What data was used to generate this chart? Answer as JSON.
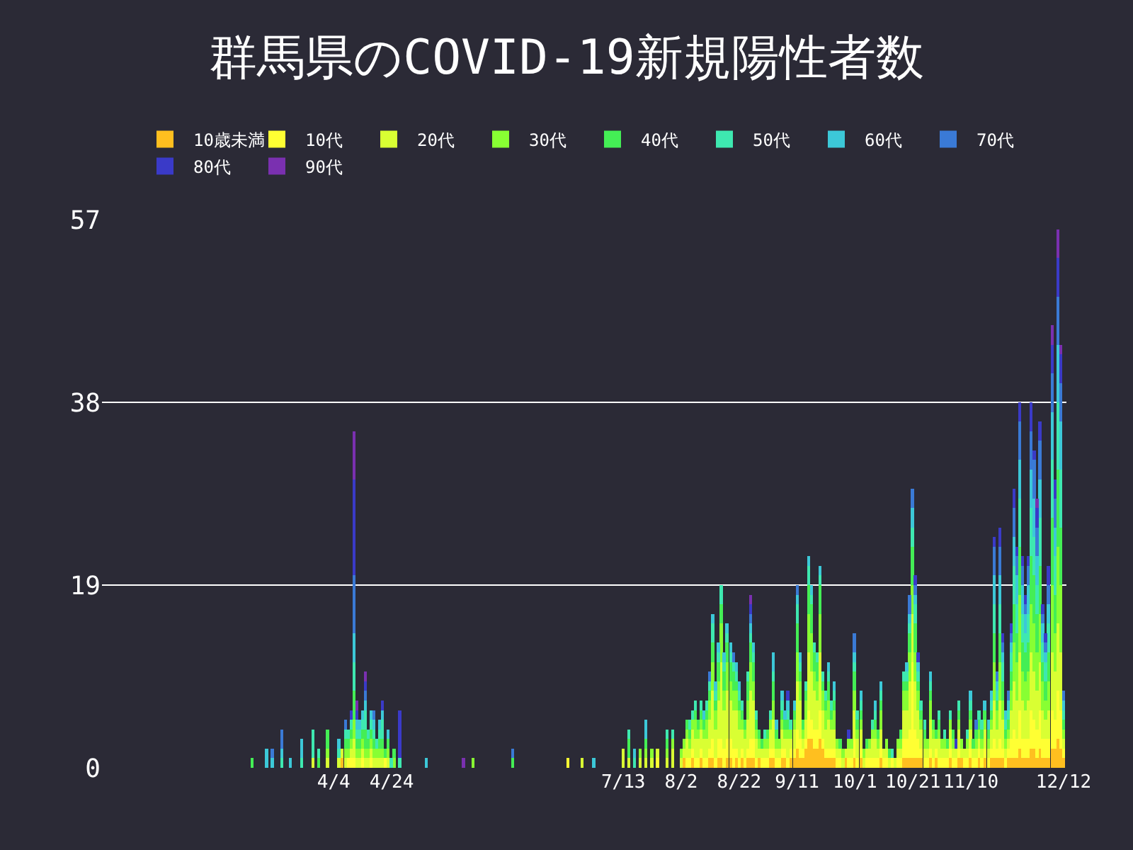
{
  "chart_data": {
    "type": "bar",
    "stacked": true,
    "title": "群馬県のCOVID-19新規陽性者数",
    "x": [
      "--03-07",
      "--03-12",
      "--03-14",
      "--03-17",
      "--03-20",
      "--03-24",
      "--03-28",
      "--03-30",
      "--04-02",
      "--04-06",
      "--04-07",
      "--04-08",
      "--04-09",
      "--04-10",
      "--04-11",
      "--04-12",
      "--04-13",
      "--04-14",
      "--04-15",
      "--04-16",
      "--04-17",
      "--04-18",
      "--04-19",
      "--04-20",
      "--04-21",
      "--04-22",
      "--04-23",
      "--04-24",
      "--04-25",
      "--04-27",
      "--05-06",
      "--05-19",
      "--05-22",
      "--06-05",
      "--06-24",
      "--06-29",
      "--07-03",
      "--07-13",
      "--07-15",
      "--07-17",
      "--07-19",
      "--07-21",
      "--07-23",
      "--07-25",
      "--07-28",
      "--07-30",
      "--08-02",
      "--08-03",
      "--08-04",
      "--08-05",
      "--08-06",
      "--08-07",
      "--08-08",
      "--08-09",
      "--08-10",
      "--08-11",
      "--08-12",
      "--08-13",
      "--08-14",
      "--08-15",
      "--08-16",
      "--08-17",
      "--08-18",
      "--08-19",
      "--08-20",
      "--08-21",
      "--08-22",
      "--08-23",
      "--08-24",
      "--08-25",
      "--08-26",
      "--08-27",
      "--08-28",
      "--08-29",
      "--08-30",
      "--08-31",
      "--09-01",
      "--09-02",
      "--09-03",
      "--09-04",
      "--09-05",
      "--09-06",
      "--09-07",
      "--09-08",
      "--09-09",
      "--09-10",
      "--09-11",
      "--09-12",
      "--09-13",
      "--09-14",
      "--09-15",
      "--09-16",
      "--09-17",
      "--09-18",
      "--09-19",
      "--09-20",
      "--09-21",
      "--09-22",
      "--09-23",
      "--09-24",
      "--09-25",
      "--09-26",
      "--09-27",
      "--09-28",
      "--09-29",
      "--09-30",
      "--10-01",
      "--10-02",
      "--10-03",
      "--10-04",
      "--10-05",
      "--10-06",
      "--10-07",
      "--10-08",
      "--10-09",
      "--10-10",
      "--10-11",
      "--10-12",
      "--10-13",
      "--10-14",
      "--10-15",
      "--10-16",
      "--10-17",
      "--10-18",
      "--10-19",
      "--10-20",
      "--10-21",
      "--10-22",
      "--10-23",
      "--10-24",
      "--10-25",
      "--10-26",
      "--10-27",
      "--10-28",
      "--10-29",
      "--10-30",
      "--10-31",
      "--11-01",
      "--11-02",
      "--11-03",
      "--11-04",
      "--11-05",
      "--11-06",
      "--11-07",
      "--11-08",
      "--11-09",
      "--11-10",
      "--11-11",
      "--11-12",
      "--11-13",
      "--11-14",
      "--11-15",
      "--11-16",
      "--11-17",
      "--11-18",
      "--11-19",
      "--11-20",
      "--11-21",
      "--11-22",
      "--11-23",
      "--11-24",
      "--11-25",
      "--11-26",
      "--11-27",
      "--11-28",
      "--11-29",
      "--11-30",
      "--12-01",
      "--12-02",
      "--12-03",
      "--12-04",
      "--12-05",
      "--12-06",
      "--12-07",
      "--12-08",
      "--12-09",
      "--12-10",
      "--12-11",
      "--12-12"
    ],
    "series": [
      {
        "name": "10歳未満",
        "color": "#ffbf1f",
        "values": [
          0,
          0,
          0,
          0,
          0,
          0,
          0,
          0,
          0,
          0,
          1,
          0,
          0,
          0,
          0,
          0,
          0,
          0,
          0,
          0,
          0,
          0,
          0,
          0,
          0,
          0,
          0,
          0,
          0,
          0,
          0,
          0,
          0,
          0,
          0,
          0,
          0,
          0,
          0,
          0,
          0,
          0,
          0,
          0,
          0,
          0,
          0,
          1,
          0,
          0,
          1,
          0,
          0,
          1,
          0,
          0,
          1,
          1,
          0,
          1,
          1,
          0,
          1,
          1,
          0,
          1,
          0,
          1,
          0,
          1,
          1,
          1,
          0,
          1,
          0,
          0,
          0,
          1,
          1,
          0,
          0,
          1,
          1,
          0,
          1,
          1,
          2,
          1,
          1,
          2,
          3,
          3,
          2,
          2,
          3,
          2,
          1,
          1,
          1,
          1,
          0,
          0,
          0,
          1,
          0,
          0,
          1,
          0,
          1,
          0,
          0,
          0,
          0,
          0,
          0,
          1,
          0,
          0,
          0,
          0,
          0,
          0,
          0,
          1,
          1,
          1,
          1,
          1,
          1,
          1,
          0,
          0,
          1,
          0,
          1,
          0,
          0,
          0,
          0,
          1,
          0,
          0,
          1,
          1,
          0,
          0,
          1,
          0,
          0,
          1,
          0,
          1,
          0,
          1,
          1,
          1,
          1,
          1,
          0,
          1,
          1,
          1,
          1,
          2,
          1,
          1,
          1,
          2,
          2,
          1,
          2,
          1,
          1,
          1,
          2,
          2,
          3,
          2,
          1
        ]
      },
      {
        "name": "10代",
        "color": "#ffff33",
        "values": [
          0,
          0,
          0,
          0,
          0,
          0,
          0,
          0,
          0,
          0,
          0,
          0,
          1,
          1,
          1,
          0,
          0,
          1,
          0,
          0,
          1,
          0,
          0,
          0,
          0,
          1,
          0,
          0,
          0,
          0,
          0,
          0,
          0,
          0,
          1,
          0,
          0,
          0,
          0,
          0,
          0,
          0,
          0,
          1,
          0,
          0,
          0,
          0,
          1,
          1,
          1,
          1,
          1,
          1,
          1,
          1,
          1,
          2,
          1,
          2,
          2,
          2,
          2,
          2,
          2,
          1,
          1,
          1,
          1,
          1,
          2,
          2,
          1,
          0,
          1,
          1,
          1,
          1,
          1,
          1,
          1,
          1,
          1,
          1,
          1,
          1,
          2,
          2,
          1,
          1,
          3,
          2,
          2,
          2,
          3,
          1,
          1,
          1,
          1,
          1,
          1,
          1,
          0,
          0,
          1,
          1,
          2,
          1,
          1,
          0,
          1,
          1,
          1,
          1,
          1,
          1,
          1,
          1,
          0,
          1,
          0,
          1,
          1,
          2,
          2,
          3,
          10,
          3,
          2,
          1,
          1,
          1,
          1,
          1,
          1,
          1,
          1,
          1,
          1,
          1,
          1,
          1,
          1,
          0,
          1,
          1,
          1,
          1,
          1,
          1,
          1,
          1,
          1,
          1,
          2,
          1,
          2,
          1,
          1,
          1,
          2,
          3,
          2,
          4,
          2,
          2,
          2,
          4,
          3,
          3,
          4,
          2,
          2,
          2,
          4,
          3,
          5,
          4,
          1
        ]
      },
      {
        "name": "20代",
        "color": "#d9ff33",
        "values": [
          0,
          0,
          0,
          0,
          0,
          0,
          1,
          0,
          1,
          1,
          1,
          1,
          0,
          1,
          2,
          1,
          1,
          1,
          1,
          1,
          1,
          1,
          1,
          1,
          1,
          0,
          1,
          0,
          0,
          0,
          0,
          0,
          0,
          0,
          0,
          1,
          0,
          2,
          1,
          0,
          1,
          1,
          1,
          1,
          1,
          2,
          1,
          1,
          2,
          1,
          2,
          2,
          2,
          2,
          2,
          2,
          3,
          5,
          3,
          4,
          8,
          4,
          5,
          4,
          4,
          4,
          3,
          2,
          2,
          3,
          5,
          4,
          2,
          1,
          1,
          1,
          1,
          2,
          3,
          1,
          1,
          2,
          1,
          2,
          1,
          2,
          5,
          4,
          1,
          2,
          6,
          5,
          4,
          3,
          6,
          3,
          2,
          3,
          2,
          2,
          1,
          1,
          1,
          1,
          1,
          1,
          3,
          2,
          2,
          1,
          1,
          1,
          2,
          2,
          1,
          2,
          1,
          1,
          1,
          0,
          1,
          1,
          1,
          3,
          3,
          5,
          5,
          5,
          3,
          2,
          1,
          1,
          3,
          2,
          1,
          2,
          1,
          1,
          1,
          2,
          1,
          1,
          2,
          1,
          1,
          1,
          2,
          1,
          1,
          1,
          1,
          2,
          1,
          2,
          4,
          2,
          4,
          3,
          1,
          1,
          3,
          5,
          4,
          6,
          4,
          3,
          4,
          6,
          5,
          4,
          5,
          3,
          2,
          3,
          6,
          5,
          7,
          6,
          1
        ]
      },
      {
        "name": "30代",
        "color": "#88ff33",
        "values": [
          0,
          0,
          0,
          0,
          0,
          0,
          0,
          0,
          1,
          0,
          0,
          1,
          1,
          1,
          2,
          1,
          1,
          1,
          1,
          1,
          1,
          1,
          1,
          1,
          1,
          0,
          1,
          0,
          1,
          0,
          0,
          0,
          1,
          0,
          0,
          0,
          0,
          0,
          0,
          0,
          1,
          1,
          1,
          0,
          1,
          1,
          1,
          1,
          1,
          1,
          1,
          2,
          1,
          1,
          1,
          2,
          2,
          3,
          2,
          2,
          4,
          2,
          3,
          2,
          2,
          2,
          2,
          1,
          1,
          2,
          3,
          2,
          1,
          1,
          0,
          1,
          1,
          1,
          2,
          1,
          1,
          1,
          1,
          1,
          1,
          1,
          3,
          2,
          1,
          2,
          4,
          4,
          2,
          2,
          4,
          2,
          2,
          2,
          1,
          2,
          1,
          0,
          1,
          0,
          1,
          1,
          2,
          1,
          1,
          1,
          0,
          1,
          1,
          1,
          1,
          2,
          0,
          1,
          0,
          0,
          0,
          1,
          1,
          2,
          2,
          3,
          3,
          3,
          2,
          1,
          1,
          1,
          2,
          1,
          0,
          1,
          1,
          1,
          0,
          1,
          1,
          0,
          1,
          1,
          0,
          1,
          1,
          0,
          1,
          1,
          1,
          1,
          1,
          1,
          4,
          2,
          4,
          2,
          1,
          1,
          2,
          4,
          4,
          6,
          3,
          3,
          3,
          5,
          5,
          4,
          5,
          3,
          2,
          3,
          7,
          4,
          8,
          7,
          1
        ]
      },
      {
        "name": "40代",
        "color": "#44ee55",
        "values": [
          1,
          0,
          0,
          0,
          0,
          0,
          0,
          1,
          2,
          0,
          0,
          1,
          1,
          1,
          3,
          1,
          1,
          1,
          2,
          1,
          1,
          1,
          0,
          1,
          1,
          1,
          1,
          0,
          1,
          0,
          0,
          0,
          0,
          1,
          0,
          0,
          0,
          0,
          2,
          0,
          0,
          1,
          0,
          0,
          1,
          0,
          0,
          0,
          1,
          1,
          0,
          1,
          1,
          1,
          1,
          1,
          1,
          2,
          1,
          2,
          2,
          2,
          2,
          2,
          2,
          1,
          1,
          1,
          1,
          2,
          2,
          2,
          1,
          1,
          1,
          0,
          1,
          0,
          2,
          1,
          0,
          1,
          1,
          1,
          0,
          1,
          3,
          1,
          1,
          1,
          3,
          3,
          2,
          2,
          3,
          1,
          1,
          2,
          1,
          1,
          0,
          1,
          0,
          0,
          0,
          0,
          2,
          1,
          1,
          0,
          1,
          0,
          0,
          1,
          1,
          1,
          0,
          0,
          1,
          0,
          0,
          0,
          1,
          1,
          1,
          2,
          4,
          3,
          1,
          1,
          1,
          0,
          1,
          1,
          1,
          1,
          0,
          0,
          1,
          0,
          1,
          0,
          1,
          0,
          0,
          0,
          1,
          1,
          1,
          1,
          1,
          1,
          1,
          1,
          3,
          1,
          3,
          2,
          1,
          1,
          2,
          4,
          3,
          5,
          3,
          3,
          3,
          5,
          5,
          4,
          5,
          2,
          2,
          3,
          7,
          4,
          8,
          6,
          1
        ]
      },
      {
        "name": "50代",
        "color": "#3ee8b0",
        "values": [
          0,
          0,
          0,
          1,
          0,
          1,
          3,
          1,
          0,
          1,
          0,
          1,
          1,
          1,
          3,
          1,
          1,
          1,
          2,
          1,
          1,
          1,
          1,
          1,
          2,
          0,
          0,
          1,
          0,
          1,
          0,
          0,
          0,
          0,
          0,
          0,
          0,
          0,
          1,
          1,
          0,
          0,
          0,
          0,
          1,
          1,
          0,
          0,
          0,
          1,
          1,
          1,
          0,
          1,
          0,
          1,
          1,
          2,
          1,
          1,
          2,
          1,
          1,
          1,
          1,
          1,
          1,
          1,
          0,
          1,
          1,
          1,
          1,
          0,
          0,
          1,
          0,
          1,
          1,
          0,
          0,
          1,
          0,
          1,
          1,
          0,
          2,
          1,
          0,
          1,
          2,
          1,
          1,
          1,
          1,
          1,
          1,
          1,
          1,
          1,
          0,
          0,
          0,
          0,
          0,
          0,
          1,
          1,
          1,
          0,
          0,
          0,
          1,
          1,
          0,
          1,
          0,
          0,
          0,
          1,
          0,
          0,
          0,
          1,
          1,
          1,
          2,
          2,
          1,
          1,
          1,
          0,
          1,
          0,
          0,
          1,
          0,
          1,
          0,
          1,
          0,
          0,
          1,
          0,
          0,
          1,
          1,
          0,
          0,
          1,
          1,
          0,
          0,
          1,
          3,
          1,
          3,
          2,
          1,
          1,
          2,
          4,
          3,
          5,
          3,
          2,
          3,
          5,
          4,
          3,
          5,
          2,
          2,
          3,
          6,
          4,
          7,
          6,
          1
        ]
      },
      {
        "name": "60代",
        "color": "#3cc8d8",
        "values": [
          0,
          2,
          1,
          1,
          1,
          2,
          0,
          0,
          0,
          1,
          0,
          0,
          0,
          0,
          3,
          1,
          1,
          1,
          1,
          0,
          1,
          1,
          0,
          1,
          1,
          0,
          1,
          0,
          0,
          0,
          1,
          0,
          0,
          0,
          0,
          0,
          1,
          0,
          0,
          1,
          0,
          2,
          0,
          0,
          0,
          0,
          0,
          0,
          0,
          0,
          0,
          0,
          0,
          0,
          1,
          0,
          0,
          1,
          1,
          1,
          0,
          1,
          1,
          1,
          0,
          1,
          1,
          0,
          0,
          0,
          1,
          1,
          0,
          0,
          0,
          0,
          0,
          0,
          2,
          1,
          0,
          1,
          1,
          1,
          0,
          1,
          1,
          1,
          0,
          0,
          1,
          1,
          0,
          0,
          1,
          0,
          0,
          1,
          0,
          1,
          0,
          0,
          0,
          0,
          0,
          0,
          1,
          0,
          1,
          0,
          0,
          0,
          0,
          1,
          0,
          1,
          0,
          0,
          0,
          0,
          0,
          0,
          0,
          0,
          1,
          1,
          2,
          1,
          1,
          0,
          0,
          0,
          1,
          0,
          0,
          0,
          0,
          0,
          0,
          0,
          0,
          0,
          0,
          0,
          0,
          0,
          1,
          0,
          0,
          0,
          0,
          1,
          1,
          1,
          3,
          1,
          3,
          1,
          1,
          1,
          1,
          3,
          3,
          4,
          3,
          2,
          3,
          4,
          4,
          3,
          4,
          2,
          1,
          2,
          5,
          3,
          6,
          5,
          1
        ]
      },
      {
        "name": "70代",
        "color": "#3a7ad6",
        "values": [
          0,
          0,
          1,
          2,
          0,
          0,
          0,
          0,
          0,
          0,
          0,
          1,
          0,
          0,
          6,
          0,
          0,
          0,
          1,
          0,
          0,
          1,
          0,
          0,
          0,
          0,
          0,
          0,
          0,
          0,
          0,
          0,
          0,
          1,
          0,
          0,
          0,
          0,
          0,
          0,
          0,
          0,
          0,
          0,
          0,
          0,
          0,
          0,
          0,
          0,
          0,
          0,
          0,
          0,
          0,
          0,
          1,
          0,
          0,
          0,
          0,
          0,
          0,
          0,
          1,
          0,
          0,
          0,
          0,
          0,
          1,
          0,
          0,
          0,
          0,
          0,
          0,
          0,
          0,
          0,
          0,
          0,
          0,
          0,
          0,
          0,
          1,
          0,
          0,
          0,
          0,
          0,
          0,
          0,
          0,
          0,
          0,
          0,
          0,
          0,
          0,
          0,
          0,
          0,
          0,
          0,
          2,
          0,
          0,
          0,
          0,
          0,
          0,
          0,
          0,
          0,
          0,
          0,
          0,
          0,
          0,
          0,
          0,
          0,
          0,
          2,
          2,
          1,
          0,
          0,
          0,
          0,
          0,
          0,
          0,
          0,
          0,
          0,
          0,
          0,
          0,
          0,
          0,
          0,
          0,
          0,
          0,
          0,
          1,
          0,
          0,
          0,
          0,
          0,
          3,
          1,
          3,
          1,
          0,
          1,
          1,
          3,
          2,
          4,
          2,
          1,
          2,
          4,
          4,
          3,
          4,
          1,
          1,
          2,
          4,
          3,
          5,
          4,
          1
        ]
      },
      {
        "name": "80代",
        "color": "#3a3ac8",
        "values": [
          0,
          0,
          0,
          0,
          0,
          0,
          0,
          0,
          0,
          0,
          0,
          0,
          0,
          1,
          10,
          1,
          0,
          0,
          1,
          0,
          0,
          0,
          0,
          0,
          1,
          0,
          0,
          0,
          0,
          5,
          0,
          0,
          0,
          0,
          0,
          0,
          0,
          0,
          0,
          0,
          0,
          0,
          0,
          0,
          0,
          0,
          0,
          0,
          0,
          0,
          0,
          0,
          0,
          0,
          0,
          0,
          0,
          0,
          0,
          0,
          0,
          0,
          0,
          0,
          0,
          0,
          0,
          0,
          0,
          0,
          1,
          0,
          0,
          0,
          0,
          0,
          0,
          0,
          0,
          0,
          0,
          0,
          0,
          1,
          0,
          0,
          0,
          0,
          0,
          0,
          0,
          0,
          0,
          0,
          0,
          0,
          0,
          0,
          0,
          0,
          0,
          0,
          0,
          0,
          1,
          0,
          0,
          0,
          0,
          0,
          0,
          0,
          0,
          0,
          0,
          0,
          0,
          0,
          0,
          0,
          0,
          0,
          0,
          0,
          0,
          0,
          0,
          1,
          1,
          0,
          0,
          0,
          0,
          0,
          0,
          0,
          0,
          0,
          0,
          0,
          0,
          1,
          0,
          0,
          0,
          0,
          0,
          0,
          0,
          0,
          0,
          0,
          0,
          0,
          1,
          0,
          2,
          1,
          0,
          0,
          1,
          2,
          1,
          2,
          1,
          1,
          1,
          3,
          1,
          2,
          2,
          1,
          1,
          2,
          3,
          2,
          4,
          3,
          0
        ]
      },
      {
        "name": "90代",
        "color": "#7a30b0",
        "values": [
          0,
          0,
          0,
          0,
          0,
          0,
          0,
          0,
          0,
          0,
          0,
          0,
          0,
          0,
          5,
          1,
          0,
          0,
          1,
          0,
          0,
          0,
          0,
          0,
          0,
          0,
          0,
          0,
          0,
          0,
          0,
          1,
          0,
          0,
          0,
          0,
          0,
          0,
          0,
          0,
          0,
          0,
          0,
          0,
          0,
          0,
          0,
          0,
          0,
          0,
          0,
          0,
          0,
          0,
          0,
          0,
          0,
          0,
          0,
          0,
          0,
          0,
          0,
          0,
          0,
          0,
          0,
          0,
          0,
          0,
          1,
          0,
          0,
          0,
          0,
          0,
          0,
          0,
          0,
          0,
          0,
          0,
          0,
          0,
          0,
          0,
          0,
          0,
          0,
          0,
          0,
          0,
          0,
          0,
          0,
          0,
          0,
          0,
          0,
          0,
          0,
          0,
          0,
          0,
          0,
          0,
          0,
          0,
          0,
          0,
          0,
          0,
          0,
          0,
          0,
          0,
          0,
          0,
          0,
          0,
          0,
          0,
          0,
          0,
          0,
          0,
          0,
          0,
          0,
          0,
          0,
          0,
          0,
          0,
          0,
          0,
          0,
          0,
          0,
          0,
          0,
          0,
          0,
          0,
          0,
          0,
          0,
          0,
          0,
          0,
          0,
          0,
          0,
          0,
          0,
          0,
          0,
          0,
          0,
          0,
          0,
          0,
          0,
          0,
          0,
          0,
          0,
          0,
          0,
          1,
          0,
          0,
          0,
          0,
          2,
          0,
          3,
          1,
          0
        ]
      }
    ],
    "xlim": [
      "--01-15",
      "--12-13"
    ],
    "xticks": [
      {
        "value": "--04-04",
        "label": "4/4"
      },
      {
        "value": "--04-24",
        "label": "4/24"
      },
      {
        "value": "--07-13",
        "label": "7/13"
      },
      {
        "value": "--08-02",
        "label": "8/2"
      },
      {
        "value": "--08-22",
        "label": "8/22"
      },
      {
        "value": "--09-11",
        "label": "9/11"
      },
      {
        "value": "--10-01",
        "label": "10/1"
      },
      {
        "value": "--10-21",
        "label": "10/21"
      },
      {
        "value": "--11-10",
        "label": "11/10"
      },
      {
        "value": "--12-12",
        "label": "12/12"
      }
    ],
    "ylim": [
      0,
      57
    ],
    "yticks": [
      0,
      19,
      38,
      57
    ],
    "grid": "y",
    "legend": "top"
  }
}
